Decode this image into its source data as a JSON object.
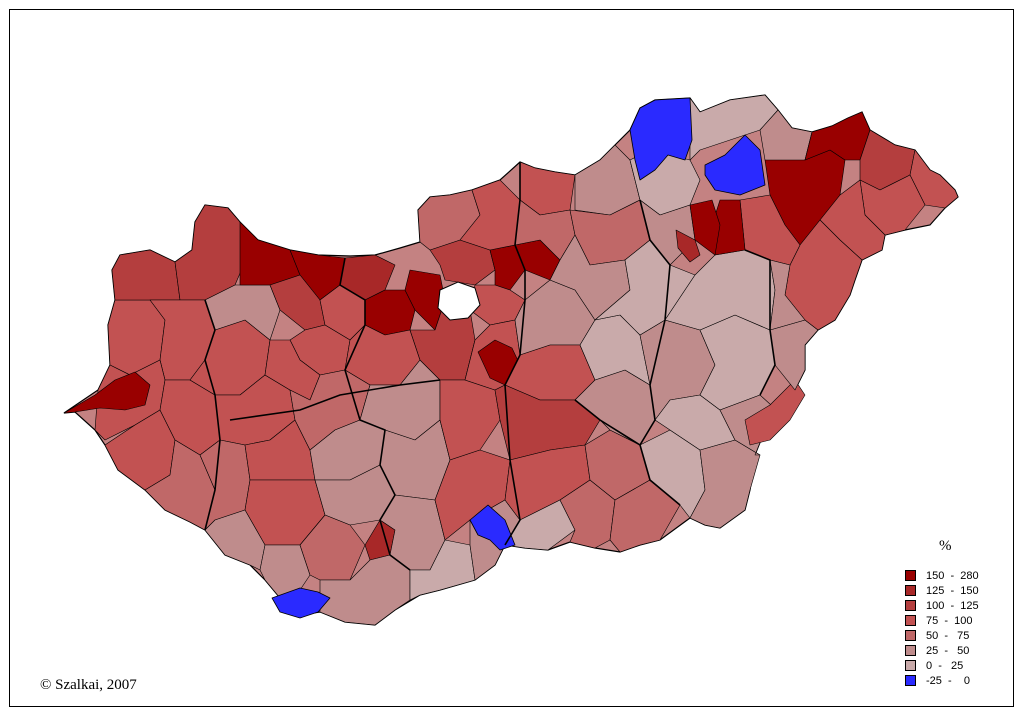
{
  "legend": {
    "title": "%",
    "items": [
      {
        "label": "150  -  280",
        "color": "#990000"
      },
      {
        "label": "125  -  150",
        "color": "#a82828"
      },
      {
        "label": "100  -  125",
        "color": "#b43e3e"
      },
      {
        "label": "75  -  100",
        "color": "#c25252"
      },
      {
        "label": "50  -   75",
        "color": "#c06868"
      },
      {
        "label": "25  -   50",
        "color": "#bf8c8c"
      },
      {
        "label": "0  -   25",
        "color": "#c9aaaa"
      },
      {
        "label": "-25  -    0",
        "color": "#2a2aff"
      }
    ]
  },
  "credit": "© Szalkai, 2007",
  "colors": {
    "outline": "#000000",
    "capital": "#ffffff",
    "background": "#ffffff"
  }
}
